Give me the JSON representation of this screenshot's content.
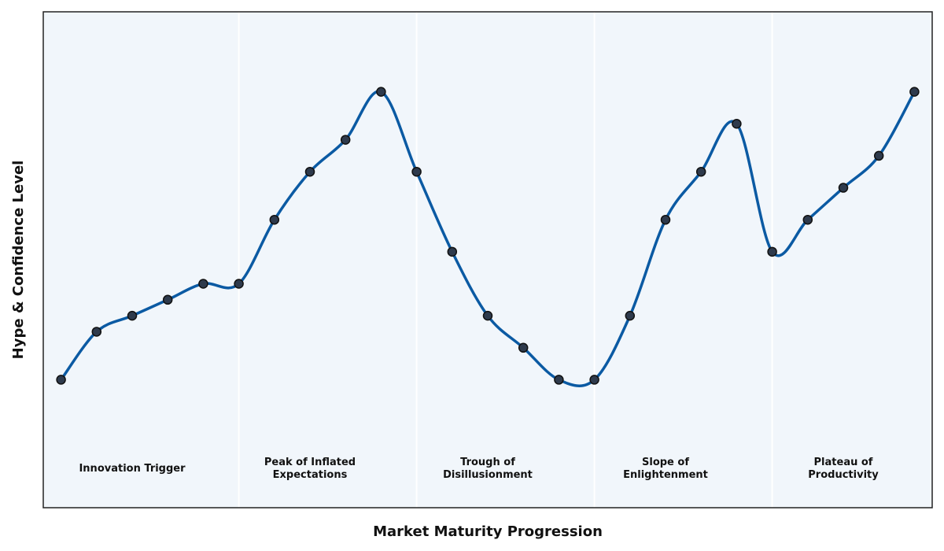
{
  "chart_data": {
    "type": "line",
    "title": "",
    "xlabel": "Market Maturity Progression",
    "ylabel": "Hype & Confidence Level",
    "x": [
      0,
      1,
      2,
      3,
      4,
      5,
      6,
      7,
      8,
      9,
      10,
      11,
      12,
      13,
      14,
      15,
      16,
      17,
      18,
      19,
      20,
      21,
      22,
      23,
      24
    ],
    "xlim": [
      -0.5,
      24.5
    ],
    "ylim": [
      0,
      6.2
    ],
    "series": [
      {
        "values": [
          1.6,
          2.2,
          2.4,
          2.6,
          2.8,
          2.8,
          3.6,
          4.2,
          4.6,
          5.2,
          4.2,
          3.2,
          2.4,
          2.0,
          1.6,
          1.6,
          2.4,
          3.6,
          4.2,
          4.8,
          3.2,
          3.6,
          4.0,
          4.4,
          5.2
        ],
        "color": "#0b5aa3"
      }
    ],
    "phases": [
      {
        "label_lines": [
          "Innovation Trigger"
        ],
        "x_start": -0.5,
        "x_end": 5.0,
        "label_x": 2
      },
      {
        "label_lines": [
          "Peak of Inflated",
          "Expectations"
        ],
        "x_start": 5.0,
        "x_end": 10.0,
        "label_x": 7
      },
      {
        "label_lines": [
          "Trough of",
          "Disillusionment"
        ],
        "x_start": 10.0,
        "x_end": 15.0,
        "label_x": 12
      },
      {
        "label_lines": [
          "Slope of",
          "Enlightenment"
        ],
        "x_start": 15.0,
        "x_end": 20.0,
        "label_x": 17
      },
      {
        "label_lines": [
          "Plateau of",
          "Productivity"
        ],
        "x_start": 20.0,
        "x_end": 24.5,
        "label_x": 22
      }
    ],
    "phase_label_y": 0.5,
    "grid": false,
    "legend": "none",
    "colors": {
      "line": "#0b5aa3",
      "marker_fill": "#2e3a4c",
      "marker_edge": "#111111",
      "plot_background": "#f1f6fb",
      "phase_divider": "#ffffff",
      "frame": "#222222"
    }
  }
}
